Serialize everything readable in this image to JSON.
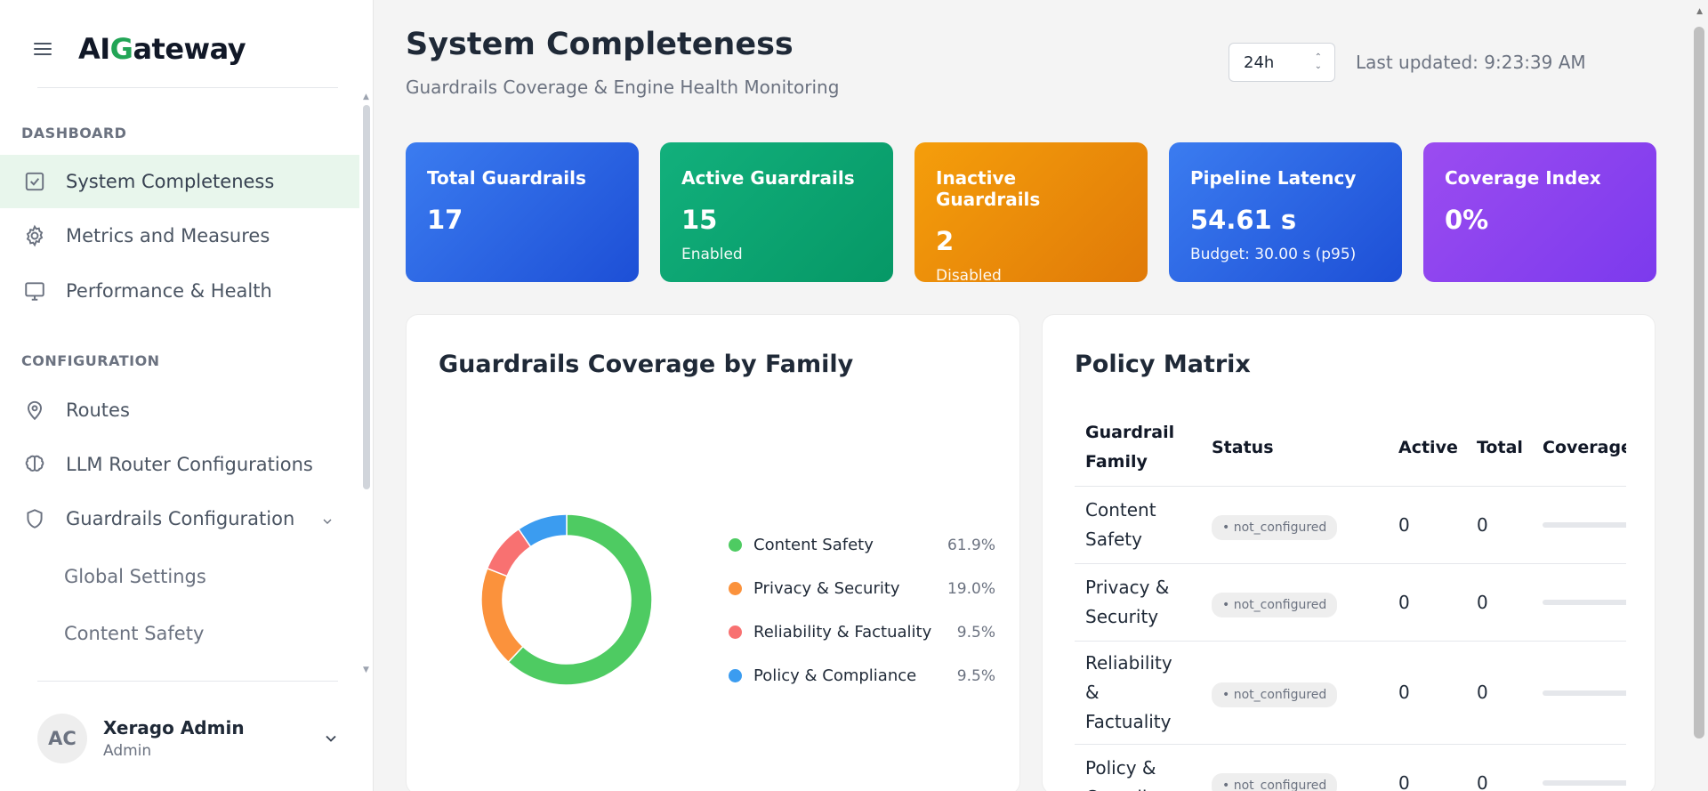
{
  "brand": {
    "prefix": "AI",
    "highlight": "G",
    "suffix": "ateway"
  },
  "sidebar": {
    "dashboard_title": "DASHBOARD",
    "dashboard_items": [
      {
        "label": "System Completeness",
        "icon": "check-square-icon",
        "active": true
      },
      {
        "label": "Metrics and Measures",
        "icon": "gear-icon"
      },
      {
        "label": "Performance & Health",
        "icon": "monitor-icon"
      }
    ],
    "config_title": "CONFIGURATION",
    "config_items": [
      {
        "label": "Routes",
        "icon": "map-pin-icon"
      },
      {
        "label": "LLM Router Configurations",
        "icon": "brain-icon"
      },
      {
        "label": "Guardrails Configuration",
        "icon": "shield-icon",
        "expanded": true
      }
    ],
    "sub_items": [
      {
        "label": "Global Settings"
      },
      {
        "label": "Content Safety"
      }
    ]
  },
  "user": {
    "initials": "AC",
    "name": "Xerago Admin",
    "role": "Admin"
  },
  "header": {
    "title": "System Completeness",
    "subtitle": "Guardrails Coverage & Engine Health Monitoring",
    "range": "24h",
    "last_updated": "Last updated: 9:23:39 AM"
  },
  "cards": [
    {
      "title": "Total Guardrails",
      "value": "17",
      "sub": "",
      "color_from": "#3b7cf0",
      "color_to": "#1d4fd6"
    },
    {
      "title": "Active Guardrails",
      "value": "15",
      "sub": "Enabled",
      "color_from": "#12b07c",
      "color_to": "#069866"
    },
    {
      "title": "Inactive Guardrails",
      "value": "2",
      "sub": "Disabled",
      "color_from": "#f59e0b",
      "color_to": "#e07a08"
    },
    {
      "title": "Pipeline Latency",
      "value": "54.61 s",
      "sub": "Budget: 30.00 s (p95)",
      "color_from": "#3b7cf0",
      "color_to": "#1d4fd6"
    },
    {
      "title": "Coverage Index",
      "value": "0%",
      "sub": "",
      "color_from": "#9b4cf0",
      "color_to": "#7c3aed"
    }
  ],
  "coverage_panel": {
    "title": "Guardrails Coverage by Family",
    "chart_data": {
      "type": "pie",
      "categories": [
        "Content Safety",
        "Privacy & Security",
        "Reliability & Factuality",
        "Policy & Compliance"
      ],
      "values": [
        61.9,
        19.0,
        9.5,
        9.5
      ],
      "labels": [
        "61.9%",
        "19.0%",
        "9.5%",
        "9.5%"
      ],
      "colors": [
        "#4ecb62",
        "#fb923c",
        "#f87171",
        "#3b9cf0"
      ],
      "donut": true,
      "legend": "right"
    }
  },
  "policy_panel": {
    "title": "Policy Matrix",
    "columns": [
      "Guardrail Family",
      "Status",
      "Active",
      "Total",
      "Coverage"
    ],
    "rows": [
      {
        "family": "Content Safety",
        "status": "• not_configured",
        "active": "0",
        "total": "0",
        "coverage": 0
      },
      {
        "family": "Privacy & Security",
        "status": "• not_configured",
        "active": "0",
        "total": "0",
        "coverage": 0
      },
      {
        "family": "Reliability & Factuality",
        "status": "• not_configured",
        "active": "0",
        "total": "0",
        "coverage": 0
      },
      {
        "family": "Policy & Compliance",
        "status": "• not_configured",
        "active": "0",
        "total": "0",
        "coverage": 0
      }
    ]
  }
}
